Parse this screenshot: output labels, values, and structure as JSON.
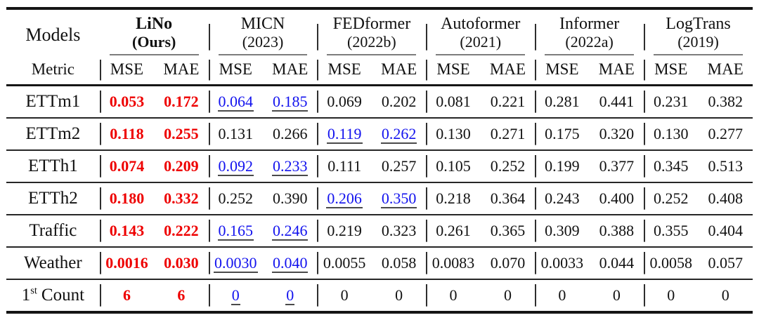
{
  "table": {
    "models_label": "Models",
    "metric_label": "Metric",
    "metrics": [
      "MSE",
      "MAE"
    ],
    "groups": [
      {
        "name": "LiNo",
        "sub": "(Ours)",
        "emphasis": true
      },
      {
        "name": "MICN",
        "sub": "(2023)",
        "emphasis": false
      },
      {
        "name": "FEDformer",
        "sub": "(2022b)",
        "emphasis": false
      },
      {
        "name": "Autoformer",
        "sub": "(2021)",
        "emphasis": false
      },
      {
        "name": "Informer",
        "sub": "(2022a)",
        "emphasis": false
      },
      {
        "name": "LogTrans",
        "sub": "(2019)",
        "emphasis": false
      }
    ],
    "style_legend": {
      "best": "red bold (best result)",
      "second": "blue underlined (second best)"
    },
    "colors": {
      "best": "#ee0000",
      "second": "#1212ee",
      "rule": "#151515",
      "cmidrule": "#7d7d7d"
    },
    "rows": [
      {
        "label": "ETTm1",
        "values": [
          "0.053",
          "0.172",
          "0.064",
          "0.185",
          "0.069",
          "0.202",
          "0.081",
          "0.221",
          "0.281",
          "0.441",
          "0.231",
          "0.382"
        ],
        "styles": [
          "best",
          "best",
          "second",
          "second",
          "",
          "",
          "",
          "",
          "",
          "",
          "",
          ""
        ]
      },
      {
        "label": "ETTm2",
        "values": [
          "0.118",
          "0.255",
          "0.131",
          "0.266",
          "0.119",
          "0.262",
          "0.130",
          "0.271",
          "0.175",
          "0.320",
          "0.130",
          "0.277"
        ],
        "styles": [
          "best",
          "best",
          "",
          "",
          "second",
          "second",
          "",
          "",
          "",
          "",
          "",
          ""
        ]
      },
      {
        "label": "ETTh1",
        "values": [
          "0.074",
          "0.209",
          "0.092",
          "0.233",
          "0.111",
          "0.257",
          "0.105",
          "0.252",
          "0.199",
          "0.377",
          "0.345",
          "0.513"
        ],
        "styles": [
          "best",
          "best",
          "second",
          "second",
          "",
          "",
          "",
          "",
          "",
          "",
          "",
          ""
        ]
      },
      {
        "label": "ETTh2",
        "values": [
          "0.180",
          "0.332",
          "0.252",
          "0.390",
          "0.206",
          "0.350",
          "0.218",
          "0.364",
          "0.243",
          "0.400",
          "0.252",
          "0.408"
        ],
        "styles": [
          "best",
          "best",
          "",
          "",
          "second",
          "second",
          "",
          "",
          "",
          "",
          "",
          ""
        ]
      },
      {
        "label": "Traffic",
        "values": [
          "0.143",
          "0.222",
          "0.165",
          "0.246",
          "0.219",
          "0.323",
          "0.261",
          "0.365",
          "0.309",
          "0.388",
          "0.355",
          "0.404"
        ],
        "styles": [
          "best",
          "best",
          "second",
          "second",
          "",
          "",
          "",
          "",
          "",
          "",
          "",
          ""
        ]
      },
      {
        "label": "Weather",
        "values": [
          "0.0016",
          "0.030",
          "0.0030",
          "0.040",
          "0.0055",
          "0.058",
          "0.0083",
          "0.070",
          "0.0033",
          "0.044",
          "0.0058",
          "0.057"
        ],
        "styles": [
          "best",
          "best",
          "second",
          "second",
          "",
          "",
          "",
          "",
          "",
          "",
          "",
          ""
        ]
      },
      {
        "label_prefix": "1",
        "label_sup": "st",
        "label_rest": "Count",
        "values": [
          "6",
          "6",
          "0",
          "0",
          "0",
          "0",
          "0",
          "0",
          "0",
          "0",
          "0",
          "0"
        ],
        "styles": [
          "best",
          "best",
          "second",
          "second",
          "",
          "",
          "",
          "",
          "",
          "",
          "",
          ""
        ]
      }
    ]
  }
}
